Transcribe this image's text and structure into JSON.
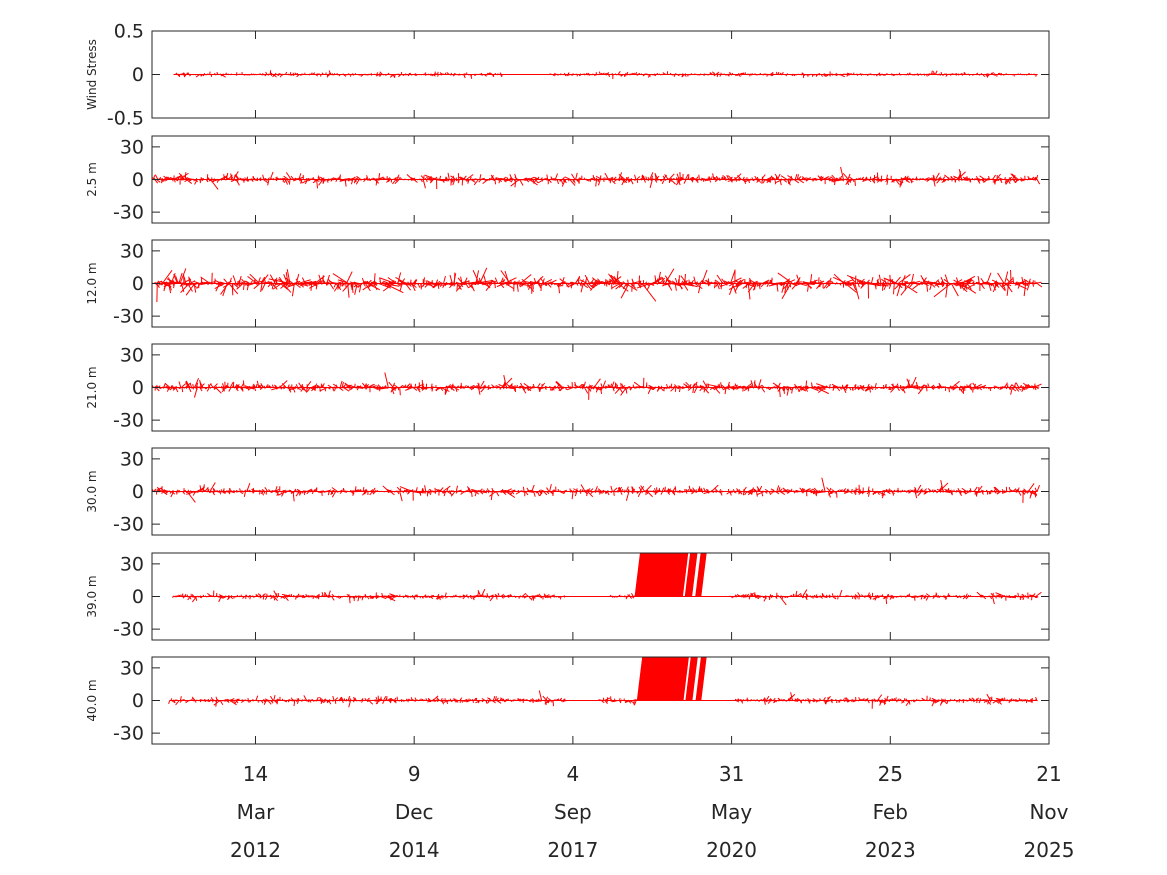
{
  "chart_data": {
    "type": "stick-vector",
    "color": "#ff0000",
    "x_axis": {
      "range": [
        "2010-06-01",
        "2025-11-21"
      ],
      "ticks": [
        {
          "date": "2012-03-14",
          "day": "14",
          "month": "Mar",
          "year": "2012"
        },
        {
          "date": "2014-12-09",
          "day": "9",
          "month": "Dec",
          "year": "2014"
        },
        {
          "date": "2017-09-04",
          "day": "4",
          "month": "Sep",
          "year": "2017"
        },
        {
          "date": "2020-05-31",
          "day": "31",
          "month": "May",
          "year": "2020"
        },
        {
          "date": "2023-02-25",
          "day": "25",
          "month": "Feb",
          "year": "2023"
        },
        {
          "date": "2025-11-21",
          "day": "21",
          "month": "Nov",
          "year": "2025"
        }
      ]
    },
    "panels": [
      {
        "ylabel": "Wind Stress",
        "ylim": [
          -0.5,
          0.5
        ],
        "yticks": [
          0.5,
          0,
          -0.5
        ],
        "ytick_labels": [
          "0.5",
          "0",
          "-0.5"
        ],
        "data_start": "2010-10-15",
        "data_end": "2025-09-10",
        "amplitude": 0.04,
        "peak": 0.11,
        "gaps": [
          [
            "2016-06-20",
            "2017-04-20"
          ]
        ],
        "bursts": []
      },
      {
        "ylabel": "2.5 m",
        "ylim": [
          -40,
          40
        ],
        "yticks": [
          30,
          0,
          -30
        ],
        "ytick_labels": [
          "30",
          "0",
          "-30"
        ],
        "data_start": "2010-06-10",
        "data_end": "2025-09-10",
        "amplitude": 8,
        "peak": 20,
        "gaps": [
          [
            "2017-07-25",
            "2017-08-10"
          ]
        ],
        "bursts": []
      },
      {
        "ylabel": "12.0 m",
        "ylim": [
          -40,
          40
        ],
        "yticks": [
          30,
          0,
          -30
        ],
        "ytick_labels": [
          "30",
          "0",
          "-30"
        ],
        "data_start": "2010-06-10",
        "data_end": "2025-09-10",
        "amplitude": 14,
        "peak": 36,
        "gaps": [
          [
            "2017-07-25",
            "2017-08-10"
          ]
        ],
        "bursts": []
      },
      {
        "ylabel": "21.0 m",
        "ylim": [
          -40,
          40
        ],
        "yticks": [
          30,
          0,
          -30
        ],
        "ytick_labels": [
          "30",
          "0",
          "-30"
        ],
        "data_start": "2010-06-10",
        "data_end": "2025-09-10",
        "amplitude": 8,
        "peak": 24,
        "gaps": [
          [
            "2017-07-25",
            "2017-08-10"
          ]
        ],
        "bursts": []
      },
      {
        "ylabel": "30.0 m",
        "ylim": [
          -40,
          40
        ],
        "yticks": [
          30,
          0,
          -30
        ],
        "ytick_labels": [
          "30",
          "0",
          "-30"
        ],
        "data_start": "2010-06-10",
        "data_end": "2025-09-10",
        "amplitude": 7,
        "peak": 22,
        "gaps": [
          [
            "2017-07-25",
            "2017-08-10"
          ],
          [
            "2020-04-10",
            "2020-05-10"
          ]
        ],
        "bursts": []
      },
      {
        "ylabel": "39.0 m",
        "ylim": [
          -40,
          40
        ],
        "yticks": [
          30,
          0,
          -30
        ],
        "ytick_labels": [
          "30",
          "0",
          "-30"
        ],
        "data_start": "2010-10-15",
        "data_end": "2025-09-10",
        "amplitude": 5,
        "peak": 17,
        "gaps": [
          [
            "2017-07-25",
            "2018-05-01"
          ],
          [
            "2018-10-01",
            "2020-05-15"
          ]
        ],
        "bursts": [
          {
            "start": "2018-10-01",
            "end": "2019-11-20",
            "lean": 30
          }
        ]
      },
      {
        "ylabel": "40.0 m",
        "ylim": [
          -40,
          40
        ],
        "yticks": [
          30,
          0,
          -30
        ],
        "ytick_labels": [
          "30",
          "0",
          "-30"
        ],
        "data_start": "2010-09-20",
        "data_end": "2025-09-10",
        "amplitude": 5,
        "peak": 16,
        "gaps": [
          [
            "2017-07-25",
            "2018-03-01"
          ],
          [
            "2018-10-15",
            "2020-06-20"
          ]
        ],
        "bursts": [
          {
            "start": "2018-10-15",
            "end": "2019-11-20",
            "lean": 30
          }
        ]
      }
    ]
  }
}
